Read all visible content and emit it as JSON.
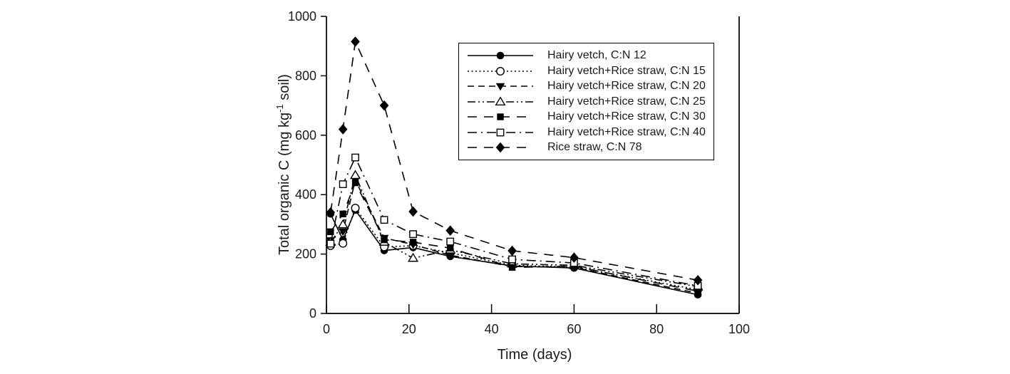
{
  "labels": {
    "y_prefix": "Total organic C (mg kg",
    "y_sup": "-1",
    "y_suffix": " soil)"
  },
  "chart_data": {
    "type": "line",
    "title": "",
    "xlabel": "Time (days)",
    "ylabel": "Total organic C (mg kg⁻¹ soil)",
    "xlim": [
      0,
      100
    ],
    "ylim": [
      0,
      1000
    ],
    "x_ticks": [
      0,
      20,
      40,
      60,
      80,
      100
    ],
    "y_ticks": [
      0,
      200,
      400,
      600,
      800,
      1000
    ],
    "grid": false,
    "legend_position": "upper-right-inside-box",
    "line_color": "#000000",
    "text_color": "#1a1a1a",
    "x": [
      1,
      4,
      7,
      14,
      21,
      30,
      45,
      60,
      90
    ],
    "series": [
      {
        "name": "Hairy vetch, C:N 12",
        "marker": "filled-circle",
        "line": "solid",
        "values": [
          335,
          248,
          348,
          212,
          222,
          192,
          160,
          153,
          63
        ]
      },
      {
        "name": "Hairy vetch+Rice straw, C:N 15",
        "marker": "open-circle",
        "line": "dotted",
        "values": [
          228,
          236,
          355,
          224,
          228,
          204,
          162,
          157,
          80
        ]
      },
      {
        "name": "Hairy vetch+Rice straw, C:N 20",
        "marker": "filled-triangle-down",
        "line": "dashed",
        "values": [
          246,
          276,
          448,
          254,
          232,
          196,
          158,
          155,
          68
        ]
      },
      {
        "name": "Hairy vetch+Rice straw, C:N 25",
        "marker": "open-triangle-up",
        "line": "dash-dot-dot",
        "values": [
          240,
          299,
          465,
          240,
          186,
          214,
          167,
          162,
          90
        ]
      },
      {
        "name": "Hairy vetch+Rice straw, C:N 30",
        "marker": "filled-square",
        "line": "long-dash",
        "values": [
          275,
          335,
          440,
          248,
          240,
          220,
          155,
          159,
          75
        ]
      },
      {
        "name": "Hairy vetch+Rice straw, C:N 40",
        "marker": "open-square",
        "line": "dash-dot",
        "values": [
          235,
          435,
          525,
          315,
          267,
          242,
          182,
          170,
          93
        ]
      },
      {
        "name": "Rice straw, C:N 78",
        "marker": "filled-diamond",
        "line": "long-dash",
        "values": [
          340,
          620,
          915,
          700,
          343,
          279,
          211,
          188,
          112
        ]
      }
    ]
  }
}
